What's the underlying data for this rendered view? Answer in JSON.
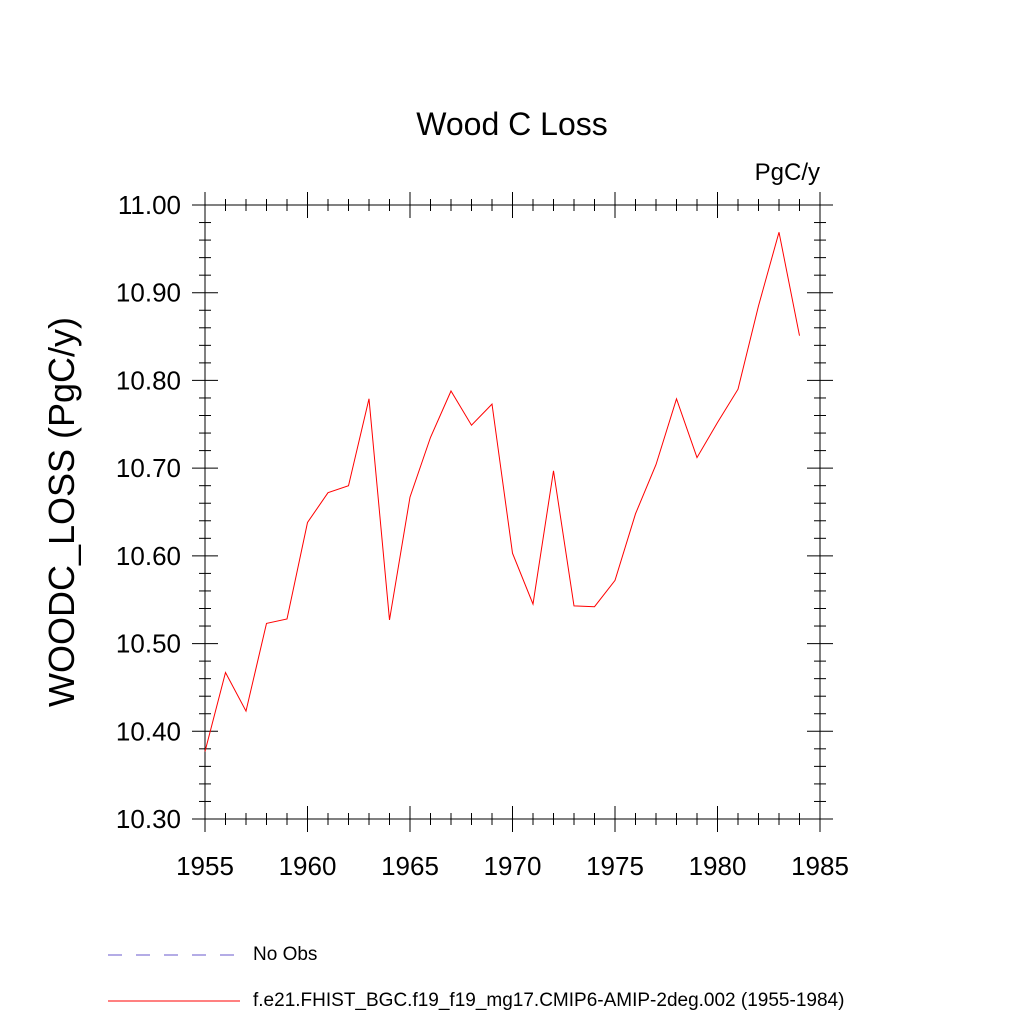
{
  "chart_data": {
    "type": "line",
    "title": "Wood C Loss",
    "units_label": "PgC/y",
    "ylabel": "WOODC_LOSS  (PgC/y)",
    "xlabel": "",
    "xlim": [
      1955,
      1985
    ],
    "ylim": [
      10.3,
      11.0
    ],
    "x_ticks": [
      "1955",
      "1960",
      "1965",
      "1970",
      "1975",
      "1980",
      "1985"
    ],
    "y_ticks": [
      "10.30",
      "10.40",
      "10.50",
      "10.60",
      "10.70",
      "10.80",
      "10.90",
      "11.00"
    ],
    "grid": false,
    "legend_position": "bottom",
    "series": [
      {
        "name": "No Obs",
        "style": "dashed",
        "color": "#6a5acd",
        "x": [],
        "y": []
      },
      {
        "name": "f.e21.FHIST_BGC.f19_f19_mg17.CMIP6-AMIP-2deg.002 (1955-1984)",
        "style": "solid",
        "color": "#ff0000",
        "x": [
          1955,
          1956,
          1957,
          1958,
          1959,
          1960,
          1961,
          1962,
          1963,
          1964,
          1965,
          1966,
          1967,
          1968,
          1969,
          1970,
          1971,
          1972,
          1973,
          1974,
          1975,
          1976,
          1977,
          1978,
          1979,
          1980,
          1981,
          1982,
          1983,
          1984
        ],
        "y": [
          10.377,
          10.467,
          10.423,
          10.523,
          10.528,
          10.638,
          10.672,
          10.68,
          10.779,
          10.527,
          10.667,
          10.735,
          10.788,
          10.749,
          10.773,
          10.603,
          10.545,
          10.697,
          10.543,
          10.542,
          10.572,
          10.648,
          10.704,
          10.779,
          10.712,
          10.752,
          10.79,
          10.885,
          10.969,
          10.851
        ]
      }
    ]
  }
}
